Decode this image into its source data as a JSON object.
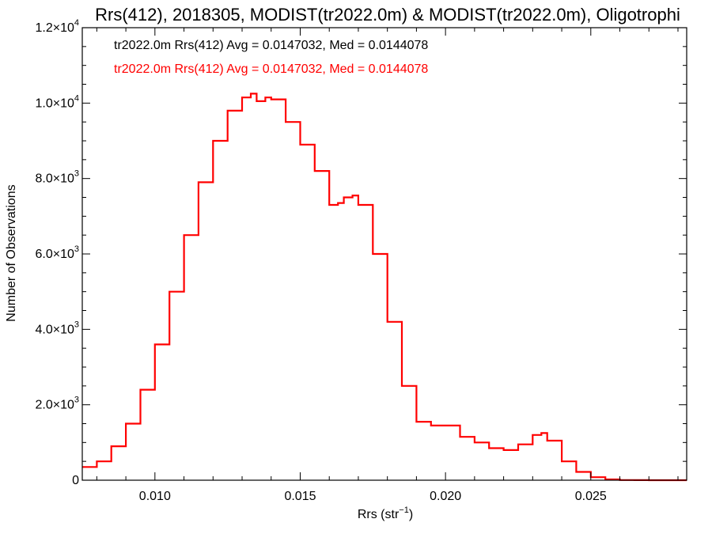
{
  "chart_data": {
    "type": "line",
    "style": "histogram-step",
    "title": "Rrs(412), 2018305, MODIST(tr2022.0m) & MODIST(tr2022.0m), Oligotrophi",
    "xlabel": "Rrs (str",
    "xlabel_sup": "−1",
    "xlabel_end": ")",
    "ylabel": "Number of Observations",
    "xlim": [
      0.0075,
      0.0283
    ],
    "ylim": [
      0,
      12000
    ],
    "grid": false,
    "legend_position": "top-left",
    "x_ticks": [
      {
        "value": 0.01,
        "label": "0.010"
      },
      {
        "value": 0.015,
        "label": "0.015"
      },
      {
        "value": 0.02,
        "label": "0.020"
      },
      {
        "value": 0.025,
        "label": "0.025"
      }
    ],
    "y_ticks": [
      {
        "value": 0,
        "mant": "0",
        "exp": ""
      },
      {
        "value": 2000,
        "mant": "2.0×10",
        "exp": "3"
      },
      {
        "value": 4000,
        "mant": "4.0×10",
        "exp": "3"
      },
      {
        "value": 6000,
        "mant": "6.0×10",
        "exp": "3"
      },
      {
        "value": 8000,
        "mant": "8.0×10",
        "exp": "3"
      },
      {
        "value": 10000,
        "mant": "1.0×10",
        "exp": "4"
      },
      {
        "value": 12000,
        "mant": "1.2×10",
        "exp": "4"
      }
    ],
    "annotations": [
      {
        "text": "tr2022.0m Rrs(412) Avg = 0.0147032, Med = 0.0144078",
        "color": "#000000"
      },
      {
        "text": "tr2022.0m Rrs(412) Avg = 0.0147032, Med = 0.0144078",
        "color": "#ff0000"
      }
    ],
    "series": [
      {
        "color": "#ff0000",
        "x": [
          0.0075,
          0.008,
          0.0085,
          0.009,
          0.0095,
          0.01,
          0.0105,
          0.011,
          0.0115,
          0.012,
          0.0125,
          0.013,
          0.0133,
          0.0135,
          0.0138,
          0.014,
          0.0145,
          0.015,
          0.0155,
          0.016,
          0.0163,
          0.0165,
          0.0168,
          0.017,
          0.0175,
          0.018,
          0.0185,
          0.019,
          0.0195,
          0.02,
          0.0205,
          0.021,
          0.0215,
          0.022,
          0.0225,
          0.023,
          0.0233,
          0.0235,
          0.024,
          0.0245,
          0.025,
          0.0255,
          0.026,
          0.0265,
          0.027,
          0.0283
        ],
        "values": [
          350,
          500,
          900,
          1500,
          2400,
          3600,
          5000,
          6500,
          7900,
          9000,
          9800,
          10150,
          10250,
          10050,
          10150,
          10100,
          9500,
          8900,
          8200,
          7300,
          7350,
          7500,
          7550,
          7300,
          6000,
          4200,
          2500,
          1550,
          1450,
          1450,
          1150,
          1000,
          850,
          800,
          950,
          1200,
          1250,
          1050,
          500,
          220,
          80,
          20,
          5,
          2,
          1,
          0
        ]
      }
    ]
  }
}
